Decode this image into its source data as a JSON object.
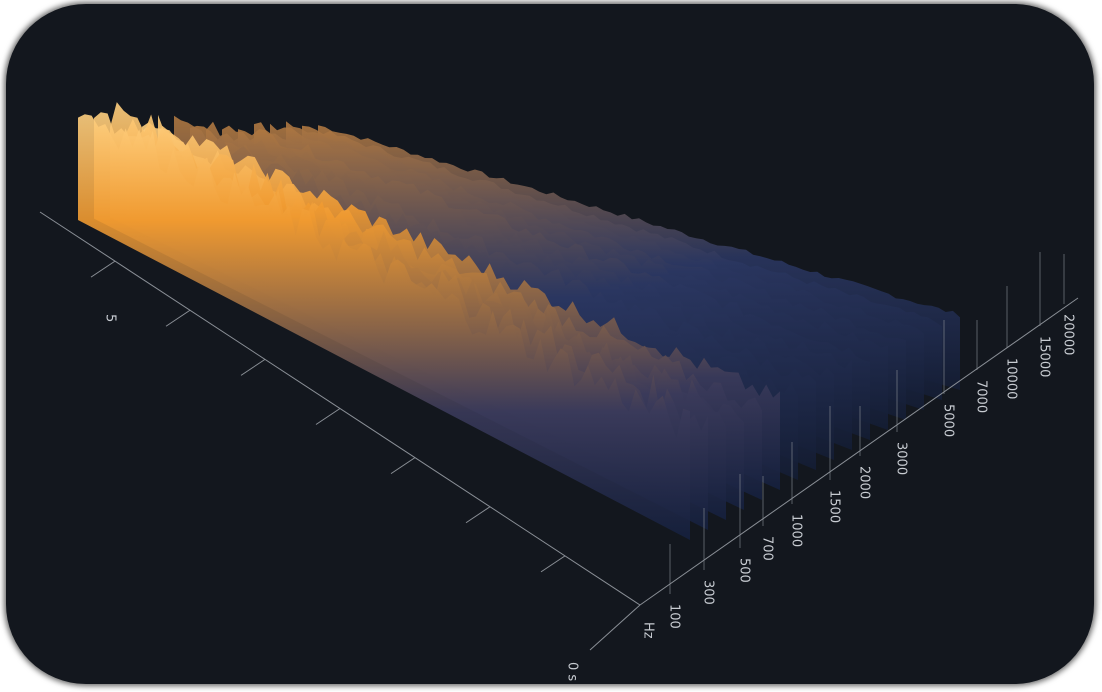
{
  "time_axis": {
    "labels": [
      "0 s",
      "5"
    ]
  },
  "frequency_axis": {
    "unit": "Hz",
    "labels": [
      100,
      300,
      500,
      700,
      1000,
      1500,
      2000,
      3000,
      5000,
      7000,
      10000,
      15000,
      20000
    ]
  }
}
